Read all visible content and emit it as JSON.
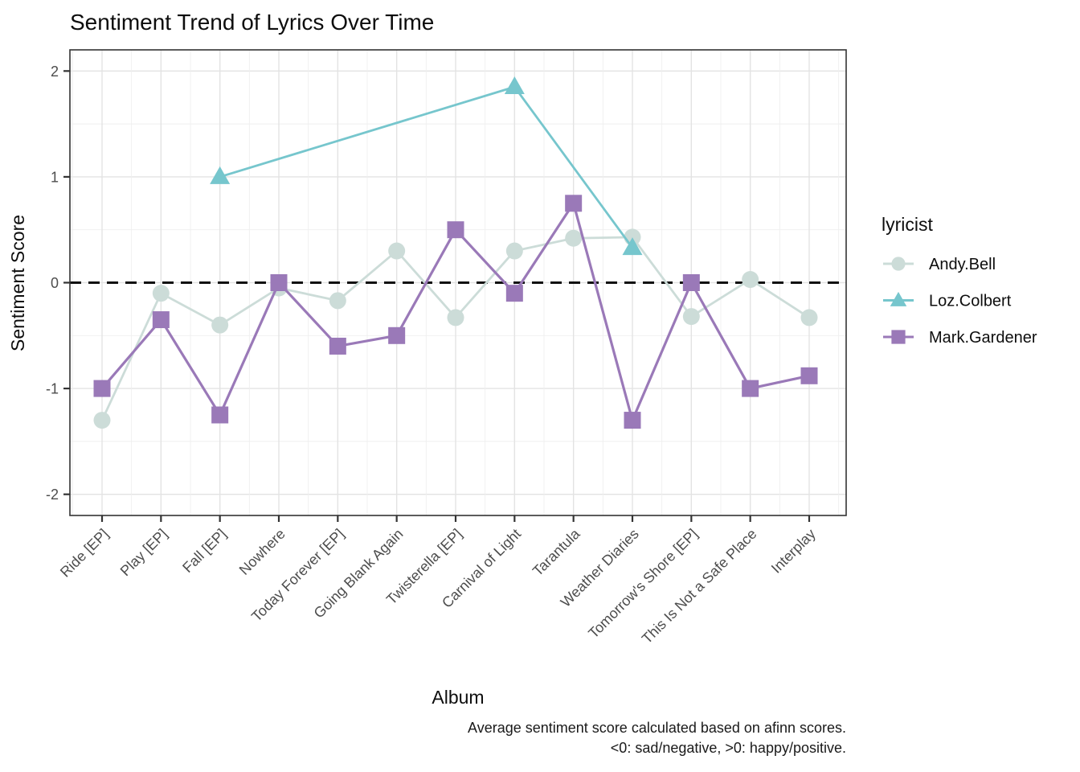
{
  "page": {
    "title": "Sentiment Trend of Lyrics Over Time",
    "caption_line1": "Average sentiment score calculated based on afinn scores.",
    "caption_line2": "<0: sad/negative, >0: happy/positive."
  },
  "legend": {
    "title": "lyricist",
    "items": [
      "Andy.Bell",
      "Loz.Colbert",
      "Mark.Gardener"
    ]
  },
  "chart_data": {
    "type": "line",
    "title": "Sentiment Trend of Lyrics Over Time",
    "xlabel": "Album",
    "ylabel": "Sentiment Score",
    "ylim": [
      -2.2,
      2.2
    ],
    "yticks": [
      -2,
      -1,
      0,
      1,
      2
    ],
    "reference_line_y": 0,
    "reference_line_style": "dashed-black",
    "grid": true,
    "legend_position": "right",
    "categories": [
      "Ride [EP]",
      "Play [EP]",
      "Fall [EP]",
      "Nowhere",
      "Today Forever [EP]",
      "Going Blank Again",
      "Twisterella [EP]",
      "Carnival of Light",
      "Tarantula",
      "Weather Diaries",
      "Tomorrow's Shore [EP]",
      "This Is Not a Safe Place",
      "Interplay"
    ],
    "series": [
      {
        "name": "Andy.Bell",
        "marker": "circle",
        "color": "#ccdcd8",
        "values": [
          -1.3,
          -0.1,
          -0.4,
          -0.05,
          -0.17,
          0.3,
          -0.33,
          0.3,
          0.42,
          0.43,
          -0.32,
          0.03,
          -0.33
        ]
      },
      {
        "name": "Loz.Colbert",
        "marker": "triangle",
        "color": "#76c6cd",
        "values": [
          null,
          null,
          1.0,
          null,
          null,
          null,
          null,
          1.85,
          null,
          0.33,
          null,
          null,
          null
        ]
      },
      {
        "name": "Mark.Gardener",
        "marker": "square",
        "color": "#9a79b8",
        "values": [
          -1.0,
          -0.35,
          -1.25,
          0.0,
          -0.6,
          -0.5,
          0.5,
          -0.1,
          0.75,
          -1.3,
          0.0,
          -1.0,
          -0.88
        ]
      }
    ],
    "style": {
      "grid_major_color": "#e3e3e3",
      "grid_minor_color": "#efefef",
      "panel_border_color": "#333333",
      "tick_label_color": "#4d4d4d",
      "reference_line_color": "#111111"
    }
  }
}
